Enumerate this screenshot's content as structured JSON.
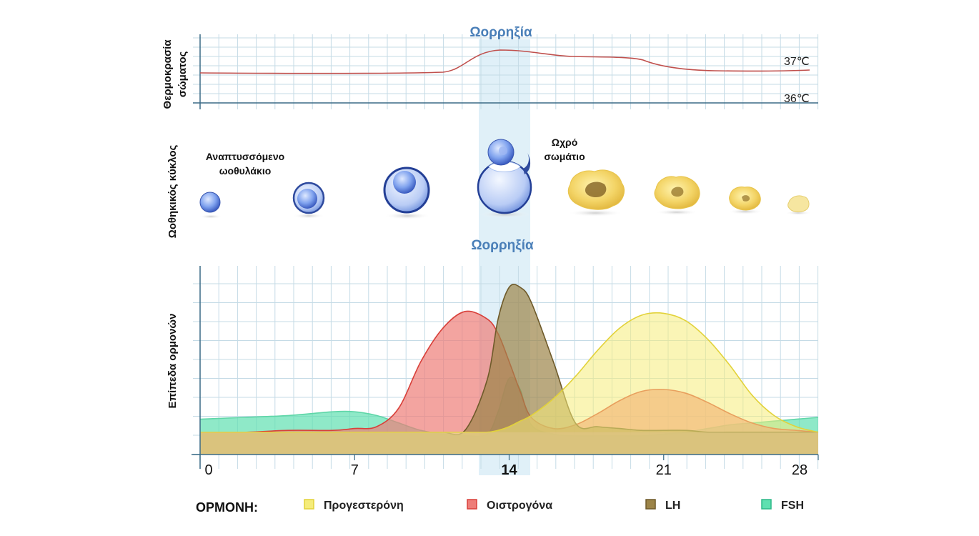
{
  "ovulation_label_top": "Ωορρηξία",
  "ovulation_label_bottom": "Ωορρηξία",
  "temperature": {
    "axis_title_line1": "Θερμοκρασία",
    "axis_title_line2": "σώματος",
    "label_high": "37℃",
    "label_low": "36℃",
    "curve_color": "#c0504d"
  },
  "follicle": {
    "axis_title": "Ωοθηκικός κύκλος",
    "developing_line1": "Αναπτυσσόμενο",
    "developing_line2": "ωοθυλάκιο",
    "corpus_line1": "Ωχρό",
    "corpus_line2": "σωμάτιο"
  },
  "hormones": {
    "axis_title": "Επίπεδα ορμονών",
    "x_ticks": [
      {
        "label": "0",
        "bold": false
      },
      {
        "label": "7",
        "bold": false
      },
      {
        "label": "14",
        "bold": true
      },
      {
        "label": "21",
        "bold": false
      },
      {
        "label": "28",
        "bold": false
      }
    ]
  },
  "chart_data": {
    "type": "area",
    "x": [
      0,
      2,
      4,
      6,
      7,
      8,
      9,
      10,
      11,
      12,
      13,
      13.5,
      14,
      14.5,
      15,
      16,
      17,
      18,
      19,
      20,
      21,
      22,
      23,
      24,
      25,
      26,
      27,
      28
    ],
    "xlim": [
      0,
      28
    ],
    "ylim": [
      0,
      10
    ],
    "series": [
      {
        "name": "Προγεστερόνη",
        "color": "#f5ec7a",
        "values": [
          1.2,
          1.2,
          1.2,
          1.2,
          1.2,
          1.2,
          1.2,
          1.2,
          1.2,
          1.2,
          1.2,
          1.3,
          1.5,
          1.8,
          2.1,
          3.0,
          4.2,
          5.6,
          6.8,
          7.5,
          7.6,
          7.2,
          6.2,
          4.8,
          3.2,
          2.1,
          1.5,
          1.2
        ]
      },
      {
        "name": "Οιστρογόνα",
        "color": "#ee7d78",
        "values": [
          1.2,
          1.2,
          1.3,
          1.3,
          1.4,
          1.5,
          2.5,
          5.0,
          6.8,
          7.7,
          7.3,
          6.5,
          5.0,
          3.4,
          2.0,
          1.4,
          1.6,
          2.2,
          2.9,
          3.4,
          3.5,
          3.3,
          2.8,
          2.2,
          1.7,
          1.4,
          1.3,
          1.2
        ]
      },
      {
        "name": "LH",
        "color": "#9c8448",
        "values": [
          1.2,
          1.2,
          1.2,
          1.2,
          1.2,
          1.2,
          1.2,
          1.2,
          1.2,
          1.3,
          4.0,
          7.3,
          9.0,
          9.0,
          8.2,
          5.0,
          1.7,
          1.5,
          1.4,
          1.3,
          1.3,
          1.3,
          1.2,
          1.2,
          1.2,
          1.2,
          1.2,
          1.2
        ]
      },
      {
        "name": "FSH",
        "color": "#5fe0b0",
        "values": [
          1.9,
          2.0,
          2.1,
          2.3,
          2.3,
          2.1,
          1.7,
          1.3,
          1.1,
          1.0,
          1.1,
          2.3,
          4.1,
          3.5,
          1.6,
          1.1,
          1.0,
          1.0,
          1.0,
          1.0,
          1.1,
          1.2,
          1.4,
          1.6,
          1.7,
          1.8,
          1.9,
          2.0
        ]
      }
    ]
  },
  "legend": {
    "title": "ΟΡΜΟΝΗ:",
    "items": [
      {
        "label": "Προγεστερόνη",
        "color": "#f5ec7a",
        "stroke": "#e2d23a"
      },
      {
        "label": "Οιστρογόνα",
        "color": "#ee7d78",
        "stroke": "#d8403a"
      },
      {
        "label": "LH",
        "color": "#9c8448",
        "stroke": "#6e5a2a"
      },
      {
        "label": "FSH",
        "color": "#5fe0b0",
        "stroke": "#2fb888"
      }
    ]
  }
}
